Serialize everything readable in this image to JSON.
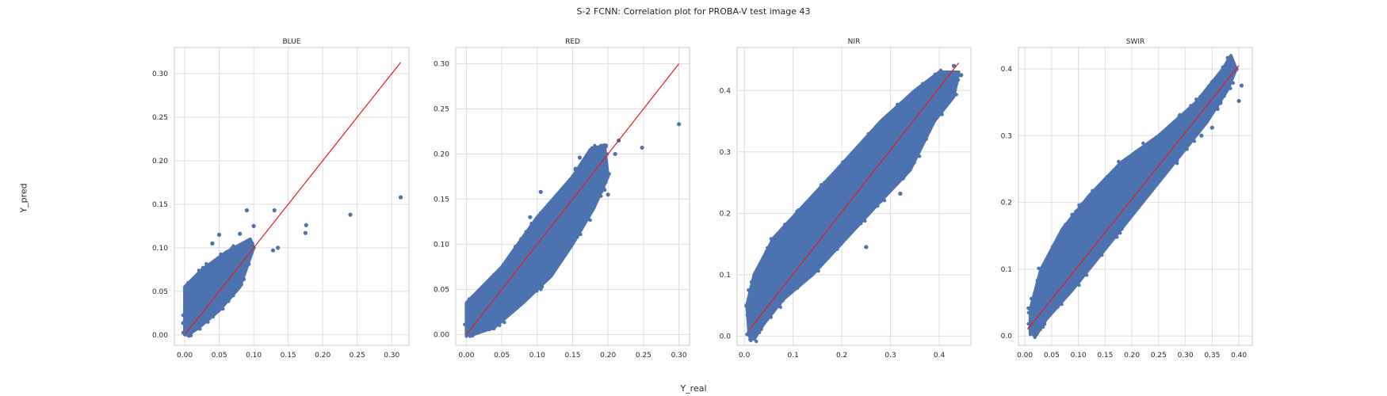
{
  "figure": {
    "suptitle": "S-2 FCNN: Correlation plot for PROBA-V test image 43",
    "xlabel": "Y_real",
    "ylabel": "Y_pred"
  },
  "colors": {
    "points": "#4c72b0",
    "fit_line": "#e41a1c",
    "grid": "#dddddd",
    "axes_edge": "#cccccc"
  },
  "chart_data": [
    {
      "type": "scatter",
      "title": "BLUE",
      "grid": true,
      "xlim": [
        -0.015,
        0.325
      ],
      "ylim": [
        -0.012,
        0.33
      ],
      "xticks": [
        0.0,
        0.05,
        0.1,
        0.15,
        0.2,
        0.25,
        0.3
      ],
      "xtick_labels": [
        "0.00",
        "0.05",
        "0.10",
        "0.15",
        "0.20",
        "0.25",
        "0.30"
      ],
      "yticks": [
        0.0,
        0.05,
        0.1,
        0.15,
        0.2,
        0.25,
        0.3
      ],
      "ytick_labels": [
        "0.00",
        "0.05",
        "0.10",
        "0.15",
        "0.20",
        "0.25",
        "0.30"
      ],
      "line": {
        "x": [
          0.0,
          0.313
        ],
        "y": [
          0.0,
          0.313
        ]
      },
      "cloud": [
        [
          0.0,
          0.0
        ],
        [
          0.0,
          0.055
        ],
        [
          0.025,
          0.075
        ],
        [
          0.06,
          0.095
        ],
        [
          0.095,
          0.11
        ],
        [
          0.1,
          0.1
        ],
        [
          0.08,
          0.055
        ],
        [
          0.05,
          0.028
        ],
        [
          0.02,
          0.008
        ],
        [
          0.005,
          0.0
        ]
      ],
      "points": [
        {
          "x": 0.313,
          "y": 0.158
        },
        {
          "x": 0.24,
          "y": 0.138
        },
        {
          "x": 0.176,
          "y": 0.126
        },
        {
          "x": 0.175,
          "y": 0.117
        },
        {
          "x": 0.13,
          "y": 0.143
        },
        {
          "x": 0.09,
          "y": 0.143
        },
        {
          "x": 0.1,
          "y": 0.125
        },
        {
          "x": 0.135,
          "y": 0.1
        },
        {
          "x": 0.128,
          "y": 0.097
        },
        {
          "x": 0.08,
          "y": 0.116
        },
        {
          "x": 0.05,
          "y": 0.115
        },
        {
          "x": 0.04,
          "y": 0.105
        }
      ]
    },
    {
      "type": "scatter",
      "title": "RED",
      "grid": true,
      "xlim": [
        -0.015,
        0.315
      ],
      "ylim": [
        -0.012,
        0.318
      ],
      "xticks": [
        0.0,
        0.05,
        0.1,
        0.15,
        0.2,
        0.25,
        0.3
      ],
      "xtick_labels": [
        "0.00",
        "0.05",
        "0.10",
        "0.15",
        "0.20",
        "0.25",
        "0.30"
      ],
      "yticks": [
        0.0,
        0.05,
        0.1,
        0.15,
        0.2,
        0.25,
        0.3
      ],
      "ytick_labels": [
        "0.00",
        "0.05",
        "0.10",
        "0.15",
        "0.20",
        "0.25",
        "0.30"
      ],
      "line": {
        "x": [
          0.0,
          0.3
        ],
        "y": [
          0.0,
          0.3
        ]
      },
      "cloud": [
        [
          0.0,
          0.0
        ],
        [
          0.0,
          0.035
        ],
        [
          0.05,
          0.075
        ],
        [
          0.1,
          0.13
        ],
        [
          0.15,
          0.175
        ],
        [
          0.175,
          0.205
        ],
        [
          0.195,
          0.21
        ],
        [
          0.2,
          0.175
        ],
        [
          0.18,
          0.14
        ],
        [
          0.15,
          0.1
        ],
        [
          0.12,
          0.065
        ],
        [
          0.08,
          0.035
        ],
        [
          0.04,
          0.008
        ],
        [
          0.01,
          0.0
        ]
      ],
      "points": [
        {
          "x": 0.3,
          "y": 0.233
        },
        {
          "x": 0.248,
          "y": 0.207
        },
        {
          "x": 0.215,
          "y": 0.215
        },
        {
          "x": 0.21,
          "y": 0.2
        },
        {
          "x": 0.105,
          "y": 0.158
        },
        {
          "x": 0.16,
          "y": 0.196
        },
        {
          "x": 0.09,
          "y": 0.13
        },
        {
          "x": 0.2,
          "y": 0.155
        }
      ]
    },
    {
      "type": "scatter",
      "title": "NIR",
      "grid": true,
      "xlim": [
        -0.015,
        0.465
      ],
      "ylim": [
        -0.015,
        0.47
      ],
      "xticks": [
        0.0,
        0.1,
        0.2,
        0.3,
        0.4
      ],
      "xtick_labels": [
        "0.0",
        "0.1",
        "0.2",
        "0.3",
        "0.4"
      ],
      "yticks": [
        0.0,
        0.1,
        0.2,
        0.3,
        0.4
      ],
      "ytick_labels": [
        "0.0",
        "0.1",
        "0.2",
        "0.3",
        "0.4"
      ],
      "line": {
        "x": [
          0.01,
          0.44
        ],
        "y": [
          0.01,
          0.445
        ]
      },
      "cloud": [
        [
          0.01,
          0.0
        ],
        [
          0.005,
          0.05
        ],
        [
          0.02,
          0.1
        ],
        [
          0.06,
          0.16
        ],
        [
          0.13,
          0.22
        ],
        [
          0.2,
          0.28
        ],
        [
          0.28,
          0.35
        ],
        [
          0.35,
          0.4
        ],
        [
          0.4,
          0.43
        ],
        [
          0.44,
          0.43
        ],
        [
          0.43,
          0.39
        ],
        [
          0.39,
          0.35
        ],
        [
          0.34,
          0.27
        ],
        [
          0.28,
          0.22
        ],
        [
          0.21,
          0.16
        ],
        [
          0.14,
          0.1
        ],
        [
          0.08,
          0.06
        ],
        [
          0.04,
          0.02
        ],
        [
          0.02,
          -0.005
        ]
      ],
      "points": [
        {
          "x": 0.25,
          "y": 0.145
        },
        {
          "x": 0.32,
          "y": 0.232
        },
        {
          "x": 0.445,
          "y": 0.425
        },
        {
          "x": 0.43,
          "y": 0.44
        },
        {
          "x": 0.33,
          "y": 0.36
        }
      ]
    },
    {
      "type": "scatter",
      "title": "SWIR",
      "grid": true,
      "xlim": [
        -0.012,
        0.425
      ],
      "ylim": [
        -0.014,
        0.432
      ],
      "xticks": [
        0.0,
        0.05,
        0.1,
        0.15,
        0.2,
        0.25,
        0.3,
        0.35,
        0.4
      ],
      "xtick_labels": [
        "0.00",
        "0.05",
        "0.10",
        "0.15",
        "0.20",
        "0.25",
        "0.30",
        "0.35",
        "0.40"
      ],
      "yticks": [
        0.0,
        0.1,
        0.2,
        0.3,
        0.4
      ],
      "ytick_labels": [
        "0.0",
        "0.1",
        "0.2",
        "0.3",
        "0.4"
      ],
      "line": {
        "x": [
          0.005,
          0.4
        ],
        "y": [
          0.01,
          0.405
        ]
      },
      "cloud": [
        [
          0.01,
          0.005
        ],
        [
          0.01,
          0.04
        ],
        [
          0.03,
          0.1
        ],
        [
          0.07,
          0.16
        ],
        [
          0.12,
          0.21
        ],
        [
          0.18,
          0.26
        ],
        [
          0.25,
          0.3
        ],
        [
          0.32,
          0.35
        ],
        [
          0.37,
          0.4
        ],
        [
          0.385,
          0.42
        ],
        [
          0.395,
          0.4
        ],
        [
          0.38,
          0.37
        ],
        [
          0.34,
          0.32
        ],
        [
          0.29,
          0.27
        ],
        [
          0.22,
          0.2
        ],
        [
          0.15,
          0.13
        ],
        [
          0.09,
          0.07
        ],
        [
          0.04,
          0.025
        ],
        [
          0.02,
          0.0
        ]
      ],
      "points": [
        {
          "x": 0.405,
          "y": 0.375
        },
        {
          "x": 0.4,
          "y": 0.352
        },
        {
          "x": 0.37,
          "y": 0.36
        },
        {
          "x": 0.35,
          "y": 0.312
        },
        {
          "x": 0.33,
          "y": 0.3
        },
        {
          "x": 0.25,
          "y": 0.24
        },
        {
          "x": 0.36,
          "y": 0.34
        }
      ]
    }
  ]
}
